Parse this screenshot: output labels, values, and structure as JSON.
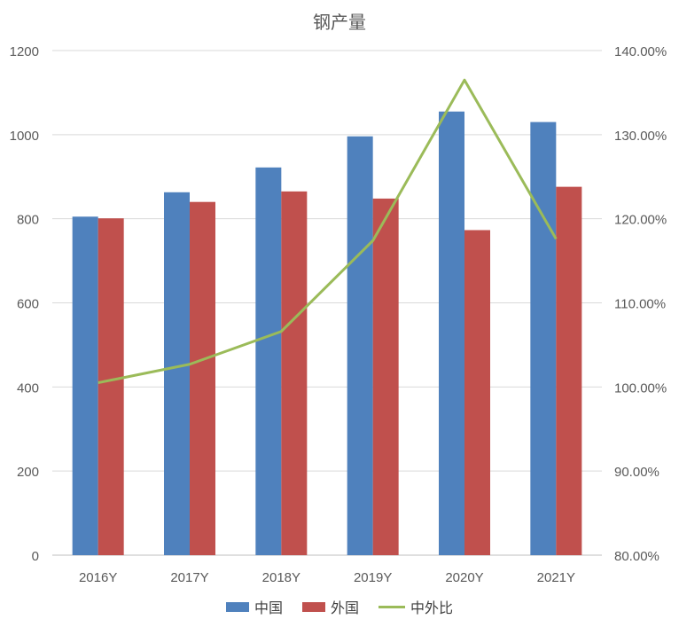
{
  "chart_data": {
    "type": "bar",
    "title": "钢产量",
    "categories": [
      "2016Y",
      "2017Y",
      "2018Y",
      "2019Y",
      "2020Y",
      "2021Y"
    ],
    "series": [
      {
        "name": "中国",
        "type": "bar",
        "axis": "left",
        "color": "#4F81BD",
        "values": [
          805,
          863,
          922,
          996,
          1055,
          1030
        ]
      },
      {
        "name": "外国",
        "type": "bar",
        "axis": "left",
        "color": "#C0504D",
        "values": [
          801,
          840,
          865,
          848,
          773,
          876
        ]
      },
      {
        "name": "中外比",
        "type": "line",
        "axis": "right",
        "color": "#9BBB59",
        "values": [
          1.005,
          1.027,
          1.066,
          1.174,
          1.365,
          1.176
        ]
      }
    ],
    "y_left": {
      "min": 0,
      "max": 1200,
      "ticks": [
        "0",
        "200",
        "400",
        "600",
        "800",
        "1000",
        "1200"
      ]
    },
    "y_right": {
      "min": 0.8,
      "max": 1.4,
      "ticks": [
        "80.00%",
        "90.00%",
        "100.00%",
        "110.00%",
        "120.00%",
        "130.00%",
        "140.00%"
      ]
    },
    "grid": true,
    "legend": "bottom"
  }
}
